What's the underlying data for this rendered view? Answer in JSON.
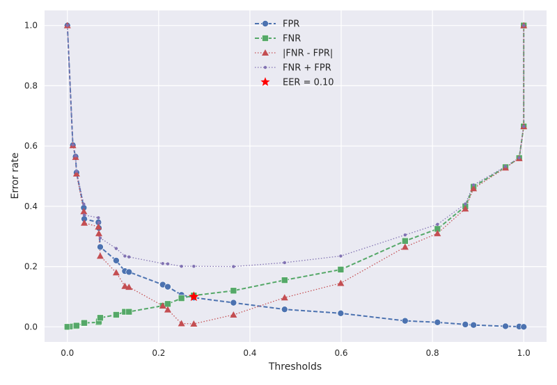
{
  "chart_data": {
    "type": "line",
    "title": "",
    "xlabel": "Thresholds",
    "ylabel": "Error rate",
    "xlim": [
      -0.05,
      1.05
    ],
    "ylim": [
      -0.05,
      1.05
    ],
    "xticks": [
      0.0,
      0.2,
      0.4,
      0.6,
      0.8,
      1.0
    ],
    "xtick_labels": [
      "0.0",
      "0.2",
      "0.4",
      "0.6",
      "0.8",
      "1.0"
    ],
    "yticks": [
      0.0,
      0.2,
      0.4,
      0.6,
      0.8,
      1.0
    ],
    "ytick_labels": [
      "0.0",
      "0.2",
      "0.4",
      "0.6",
      "0.8",
      "1.0"
    ],
    "grid": true,
    "legend_position": "top-center",
    "series": [
      {
        "name": "FPR",
        "color": "#4c72b0",
        "linestyle": "dashed",
        "marker": "circle",
        "points": [
          [
            0.0,
            1.0
          ],
          [
            0.012,
            0.603
          ],
          [
            0.018,
            0.565
          ],
          [
            0.02,
            0.512
          ],
          [
            0.036,
            0.395
          ],
          [
            0.037,
            0.358
          ],
          [
            0.068,
            0.347
          ],
          [
            0.069,
            0.328
          ],
          [
            0.072,
            0.265
          ],
          [
            0.107,
            0.22
          ],
          [
            0.126,
            0.185
          ],
          [
            0.135,
            0.182
          ],
          [
            0.209,
            0.14
          ],
          [
            0.22,
            0.133
          ],
          [
            0.25,
            0.106
          ],
          [
            0.277,
            0.097
          ],
          [
            0.364,
            0.08
          ],
          [
            0.476,
            0.058
          ],
          [
            0.599,
            0.045
          ],
          [
            0.74,
            0.02
          ],
          [
            0.811,
            0.015
          ],
          [
            0.872,
            0.008
          ],
          [
            0.89,
            0.006
          ],
          [
            0.96,
            0.002
          ],
          [
            0.99,
            0.001
          ],
          [
            1.0,
            0.0
          ]
        ]
      },
      {
        "name": "FNR",
        "color": "#55a868",
        "linestyle": "dashed",
        "marker": "square",
        "points": [
          [
            0.0,
            0.0
          ],
          [
            0.012,
            0.001
          ],
          [
            0.018,
            0.002
          ],
          [
            0.02,
            0.004
          ],
          [
            0.036,
            0.012
          ],
          [
            0.037,
            0.013
          ],
          [
            0.068,
            0.015
          ],
          [
            0.069,
            0.018
          ],
          [
            0.072,
            0.03
          ],
          [
            0.107,
            0.04
          ],
          [
            0.126,
            0.05
          ],
          [
            0.135,
            0.05
          ],
          [
            0.209,
            0.07
          ],
          [
            0.22,
            0.076
          ],
          [
            0.25,
            0.095
          ],
          [
            0.277,
            0.104
          ],
          [
            0.364,
            0.12
          ],
          [
            0.476,
            0.155
          ],
          [
            0.599,
            0.19
          ],
          [
            0.74,
            0.285
          ],
          [
            0.811,
            0.325
          ],
          [
            0.872,
            0.4
          ],
          [
            0.89,
            0.465
          ],
          [
            0.96,
            0.53
          ],
          [
            0.99,
            0.56
          ],
          [
            1.0,
            0.665
          ],
          [
            1.0,
            1.0
          ]
        ]
      },
      {
        "name": "|FNR - FPR|",
        "color": "#c44e52",
        "linestyle": "dotted",
        "marker": "triangle",
        "points": [
          [
            0.0,
            1.0
          ],
          [
            0.012,
            0.602
          ],
          [
            0.018,
            0.563
          ],
          [
            0.02,
            0.508
          ],
          [
            0.036,
            0.383
          ],
          [
            0.037,
            0.345
          ],
          [
            0.068,
            0.332
          ],
          [
            0.069,
            0.31
          ],
          [
            0.072,
            0.235
          ],
          [
            0.107,
            0.18
          ],
          [
            0.126,
            0.135
          ],
          [
            0.135,
            0.132
          ],
          [
            0.209,
            0.07
          ],
          [
            0.22,
            0.057
          ],
          [
            0.25,
            0.011
          ],
          [
            0.277,
            0.01
          ],
          [
            0.364,
            0.04
          ],
          [
            0.476,
            0.097
          ],
          [
            0.599,
            0.145
          ],
          [
            0.74,
            0.265
          ],
          [
            0.811,
            0.31
          ],
          [
            0.872,
            0.392
          ],
          [
            0.89,
            0.459
          ],
          [
            0.96,
            0.528
          ],
          [
            0.99,
            0.559
          ],
          [
            1.0,
            0.665
          ],
          [
            1.0,
            1.0
          ]
        ]
      },
      {
        "name": "FNR + FPR",
        "color": "#8172b2",
        "linestyle": "dotted",
        "marker": "point",
        "points": [
          [
            0.0,
            1.0
          ],
          [
            0.012,
            0.604
          ],
          [
            0.018,
            0.567
          ],
          [
            0.02,
            0.516
          ],
          [
            0.036,
            0.407
          ],
          [
            0.037,
            0.371
          ],
          [
            0.068,
            0.362
          ],
          [
            0.069,
            0.346
          ],
          [
            0.072,
            0.295
          ],
          [
            0.107,
            0.26
          ],
          [
            0.126,
            0.235
          ],
          [
            0.135,
            0.232
          ],
          [
            0.209,
            0.21
          ],
          [
            0.22,
            0.209
          ],
          [
            0.25,
            0.201
          ],
          [
            0.277,
            0.201
          ],
          [
            0.364,
            0.2
          ],
          [
            0.476,
            0.213
          ],
          [
            0.599,
            0.235
          ],
          [
            0.74,
            0.305
          ],
          [
            0.811,
            0.34
          ],
          [
            0.872,
            0.408
          ],
          [
            0.89,
            0.471
          ],
          [
            0.96,
            0.532
          ],
          [
            0.99,
            0.561
          ],
          [
            1.0,
            0.665
          ],
          [
            1.0,
            1.0
          ]
        ]
      }
    ],
    "annotations": [
      {
        "name": "EER = 0.10",
        "type": "star",
        "color": "#ff0000",
        "x": 0.277,
        "y": 0.1
      }
    ]
  }
}
